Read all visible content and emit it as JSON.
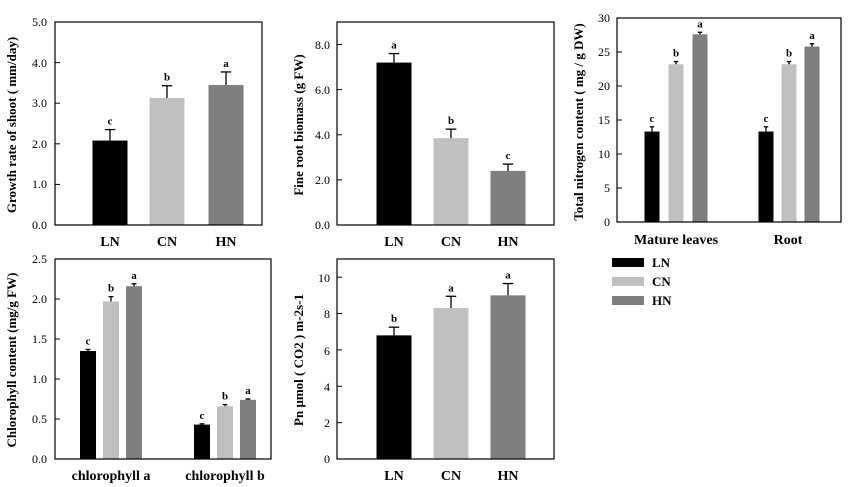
{
  "colors": {
    "LN": "#000000",
    "CN": "#c0c0c0",
    "HN": "#7f7f7f"
  },
  "legend": {
    "entries": [
      "LN",
      "CN",
      "HN"
    ]
  },
  "chart_data": [
    {
      "type": "bar",
      "ylabel": "Growth rate of shoot ( mm/day)",
      "ylim": [
        0,
        5
      ],
      "yticks": [
        "0.0",
        "1.0",
        "2.0",
        "3.0",
        "4.0",
        "5.0"
      ],
      "categories": [
        "LN",
        "CN",
        "HN"
      ],
      "values": [
        2.08,
        3.13,
        3.45
      ],
      "errors": [
        0.27,
        0.3,
        0.32
      ],
      "letters": [
        "c",
        "b",
        "a"
      ]
    },
    {
      "type": "bar",
      "ylabel": "Fine root biomass (g FW)",
      "ylim": [
        0,
        9
      ],
      "yticks": [
        "0.0",
        "2.0",
        "4.0",
        "6.0",
        "8.0"
      ],
      "categories": [
        "LN",
        "CN",
        "HN"
      ],
      "values": [
        7.2,
        3.85,
        2.4
      ],
      "errors": [
        0.4,
        0.4,
        0.3
      ],
      "letters": [
        "a",
        "b",
        "c"
      ]
    },
    {
      "type": "bar",
      "ylabel": "Total nitrogen content ( mg / g DW)",
      "ylim": [
        0,
        30
      ],
      "yticks": [
        "0",
        "5",
        "10",
        "15",
        "20",
        "25",
        "30"
      ],
      "categories": [
        "Mature leaves",
        "Root"
      ],
      "series": [
        {
          "name": "LN",
          "values": [
            13.3,
            13.3
          ],
          "errors": [
            0.7,
            0.7
          ],
          "letters": [
            "c",
            "c"
          ]
        },
        {
          "name": "CN",
          "values": [
            23.2,
            23.2
          ],
          "errors": [
            0.4,
            0.4
          ],
          "letters": [
            "b",
            "b"
          ]
        },
        {
          "name": "HN",
          "values": [
            27.6,
            25.8
          ],
          "errors": [
            0.3,
            0.4
          ],
          "letters": [
            "a",
            "a"
          ]
        }
      ]
    },
    {
      "type": "bar",
      "ylabel": "Chlorophyll content (mg/g FW)",
      "ylim": [
        0,
        2.5
      ],
      "yticks": [
        "0.0",
        "0.5",
        "1.0",
        "1.5",
        "2.0",
        "2.5"
      ],
      "categories": [
        "chlorophyll a",
        "chlorophyll b"
      ],
      "series": [
        {
          "name": "LN",
          "values": [
            1.35,
            0.43
          ],
          "errors": [
            0.02,
            0.01
          ],
          "letters": [
            "c",
            "c"
          ]
        },
        {
          "name": "CN",
          "values": [
            1.97,
            0.66
          ],
          "errors": [
            0.06,
            0.02
          ],
          "letters": [
            "b",
            "b"
          ]
        },
        {
          "name": "HN",
          "values": [
            2.16,
            0.74
          ],
          "errors": [
            0.03,
            0.01
          ],
          "letters": [
            "a",
            "a"
          ]
        }
      ]
    },
    {
      "type": "bar",
      "ylabel": "Pn μmol ( CO2 ) m-2s-1",
      "ylim": [
        0,
        11
      ],
      "yticks": [
        "0",
        "2",
        "4",
        "6",
        "8",
        "10"
      ],
      "categories": [
        "LN",
        "CN",
        "HN"
      ],
      "values": [
        6.8,
        8.3,
        9.0
      ],
      "errors": [
        0.45,
        0.65,
        0.65
      ],
      "letters": [
        "b",
        "a",
        "a"
      ]
    }
  ]
}
